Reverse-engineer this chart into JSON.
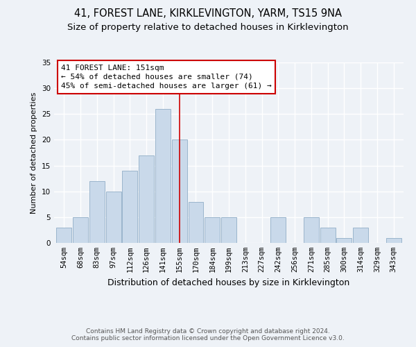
{
  "title": "41, FOREST LANE, KIRKLEVINGTON, YARM, TS15 9NA",
  "subtitle": "Size of property relative to detached houses in Kirklevington",
  "xlabel": "Distribution of detached houses by size in Kirklevington",
  "ylabel": "Number of detached properties",
  "categories": [
    "54sqm",
    "68sqm",
    "83sqm",
    "97sqm",
    "112sqm",
    "126sqm",
    "141sqm",
    "155sqm",
    "170sqm",
    "184sqm",
    "199sqm",
    "213sqm",
    "227sqm",
    "242sqm",
    "256sqm",
    "271sqm",
    "285sqm",
    "300sqm",
    "314sqm",
    "329sqm",
    "343sqm"
  ],
  "values": [
    3,
    5,
    12,
    10,
    14,
    17,
    26,
    20,
    8,
    5,
    5,
    0,
    0,
    5,
    0,
    5,
    3,
    1,
    3,
    0,
    1
  ],
  "bar_color": "#c9d9ea",
  "bar_edgecolor": "#9ab5cc",
  "vline_index": 7,
  "vline_color": "#cc0000",
  "annotation_text": "41 FOREST LANE: 151sqm\n← 54% of detached houses are smaller (74)\n45% of semi-detached houses are larger (61) →",
  "annotation_box_facecolor": "#ffffff",
  "annotation_box_edgecolor": "#cc0000",
  "ylim": [
    0,
    35
  ],
  "yticks": [
    0,
    5,
    10,
    15,
    20,
    25,
    30,
    35
  ],
  "background_color": "#eef2f7",
  "plot_background": "#eef2f7",
  "grid_color": "#ffffff",
  "footer": "Contains HM Land Registry data © Crown copyright and database right 2024.\nContains public sector information licensed under the Open Government Licence v3.0.",
  "title_fontsize": 10.5,
  "subtitle_fontsize": 9.5,
  "xlabel_fontsize": 9,
  "ylabel_fontsize": 8,
  "tick_fontsize": 7.5,
  "annotation_fontsize": 8,
  "footer_fontsize": 6.5
}
